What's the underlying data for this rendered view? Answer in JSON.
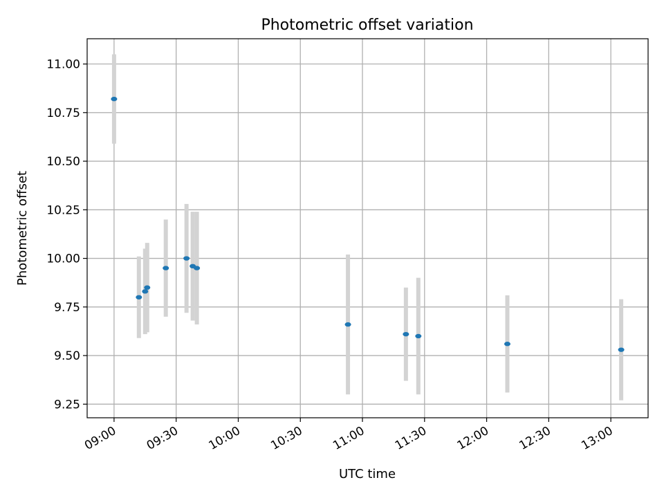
{
  "chart_data": {
    "type": "scatter",
    "title": "Photometric offset variation",
    "xlabel": "UTC time",
    "ylabel": "Photometric offset",
    "xlim": [
      "08:47",
      "13:18"
    ],
    "ylim": [
      9.18,
      11.13
    ],
    "x_ticks": [
      "09:00",
      "09:30",
      "10:00",
      "10:30",
      "11:00",
      "11:30",
      "12:00",
      "12:30",
      "13:00"
    ],
    "y_ticks": [
      9.25,
      9.5,
      9.75,
      10.0,
      10.25,
      10.5,
      10.75,
      11.0
    ],
    "y_tick_labels": [
      "9.25",
      "9.50",
      "9.75",
      "10.00",
      "10.25",
      "10.50",
      "10.75",
      "11.00"
    ],
    "grid": true,
    "colors": {
      "point": "#1f77b4",
      "errorbar": "#d3d3d3",
      "grid": "#b0b0b0"
    },
    "points": [
      {
        "x": "09:00",
        "y": 10.82,
        "yerr": 0.23
      },
      {
        "x": "09:12",
        "y": 9.8,
        "yerr": 0.21
      },
      {
        "x": "09:15",
        "y": 9.83,
        "yerr": 0.22
      },
      {
        "x": "09:16",
        "y": 9.85,
        "yerr": 0.23
      },
      {
        "x": "09:25",
        "y": 9.95,
        "yerr": 0.25
      },
      {
        "x": "09:35",
        "y": 10.0,
        "yerr": 0.28
      },
      {
        "x": "09:38",
        "y": 9.96,
        "yerr": 0.28
      },
      {
        "x": "09:40",
        "y": 9.95,
        "yerr": 0.29
      },
      {
        "x": "10:53",
        "y": 9.66,
        "yerr": 0.36
      },
      {
        "x": "11:21",
        "y": 9.61,
        "yerr": 0.24
      },
      {
        "x": "11:27",
        "y": 9.6,
        "yerr": 0.3
      },
      {
        "x": "12:10",
        "y": 9.56,
        "yerr": 0.25
      },
      {
        "x": "13:05",
        "y": 9.53,
        "yerr": 0.26
      }
    ]
  }
}
